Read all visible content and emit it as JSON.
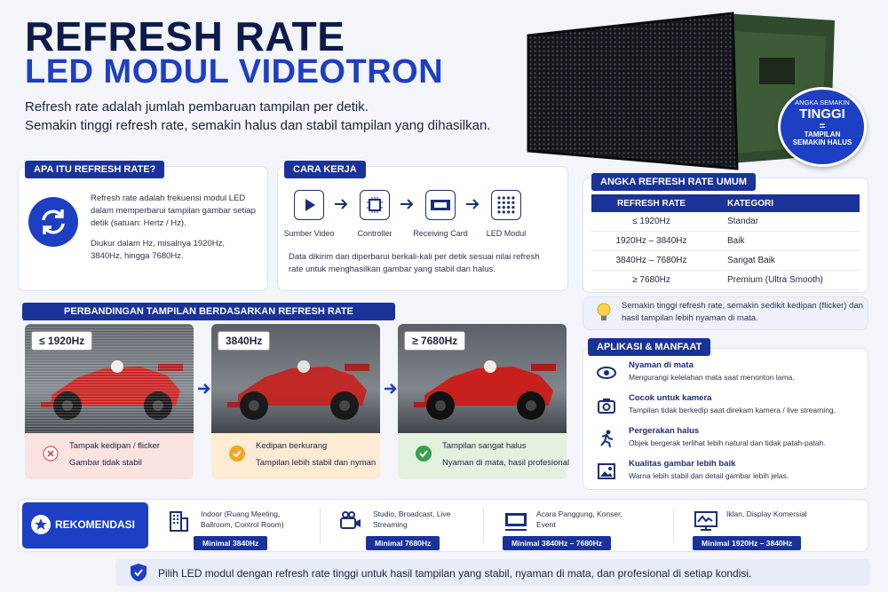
{
  "header": {
    "title_line1": "REFRESH RATE",
    "title_line2": "LED MODUL VIDEOTRON",
    "description": [
      "Refresh rate adalah jumlah pembaruan tampilan per detik.",
      "Semakin tinggi refresh rate, semakin halus dan stabil tampilan yang dihasilkan."
    ]
  },
  "badge": {
    "top": "ANGKA SEMAKIN",
    "big": "TINGGI",
    "equals": "=",
    "bottom": [
      "TAMPILAN",
      "SEMAKIN HALUS"
    ]
  },
  "what_is": {
    "title": "APA ITU REFRESH RATE?",
    "paragraphs": [
      "Refresh rate adalah frekuensi modul LED dalam memperbarui tampilan gambar setiap detik (satuan: Hertz / Hz).",
      "Diukur dalam Hz, misalnya 1920Hz, 3840Hz, hingga 7680Hz."
    ]
  },
  "how_it_works": {
    "title": "CARA KERJA",
    "steps": [
      "Sumber Video",
      "Controller",
      "Receiving Card",
      "LED Modul"
    ],
    "description": "Data dikirim dan diperbarui berkali-kali per detik sesuai nilai refresh rate untuk menghasilkan gambar yang stabil dan halus."
  },
  "table": {
    "title": "ANGKA REFRESH RATE UMUM",
    "headers": [
      "REFRESH RATE",
      "KATEGORI"
    ],
    "rows": [
      [
        "≤ 1920Hz",
        "Standar"
      ],
      [
        "1920Hz – 3840Hz",
        "Baik"
      ],
      [
        "3840Hz – 7680Hz",
        "Sangat Baik"
      ],
      [
        "≥ 7680Hz",
        "Premium (Ultra Smooth)"
      ]
    ],
    "note": "Semakin tinggi refresh rate, semakin sedikit kedipan (flicker) dan hasil tampilan lebih nyaman di mata."
  },
  "comparison": {
    "title": "PERBANDINGAN TAMPILAN BERDASARKAN REFRESH RATE",
    "panels": [
      {
        "label": "≤ 1920Hz",
        "notes": [
          "Tampak kedipan / flicker",
          "Gambar tidak stabil"
        ]
      },
      {
        "label": "3840Hz",
        "notes": [
          "Kedipan berkurang",
          "Tampilan lebih stabil dan nyman"
        ]
      },
      {
        "label": "≥ 7680Hz",
        "notes": [
          "Tampilan sangat halus",
          "Nyaman di mata, hasil profesional"
        ]
      }
    ]
  },
  "applications": {
    "title": "APLIKASI & MANFAAT",
    "items": [
      {
        "title": "Nyaman di mata",
        "desc": "Mengurangi kelelahan mata saat menonton lama."
      },
      {
        "title": "Cocok untuk kamera",
        "desc": "Tampilan tidak berkedip saat direkam kamera / live streaming."
      },
      {
        "title": "Pergerakan halus",
        "desc": "Objek bergerak terlihat lebih natural dan tidak patah-patah."
      },
      {
        "title": "Kualitas gambar lebih baik",
        "desc": "Warna lebih stabil dan detail gambar lebih jelas."
      }
    ]
  },
  "recommendation": {
    "title": "REKOMENDASI",
    "items": [
      {
        "desc": "Indoor (Ruang Meeting, Ballroom, Control Room)",
        "badge": "Minimal 3840Hz"
      },
      {
        "desc": "Studio, Broadcast, Live Streaming",
        "badge": "Minimal 7680Hz"
      },
      {
        "desc": "Acara Panggung, Konser, Event",
        "badge": "Minimal 3840Hz – 7680Hz"
      },
      {
        "desc": "Iklan, Display Komersial",
        "badge": "Minimal 1920Hz – 3840Hz"
      }
    ]
  },
  "footer": {
    "text": "Pilih LED modul dengan refresh rate tinggi untuk hasil tampilan yang stabil, nyaman di mata, dan profesional di setiap kondisi."
  }
}
